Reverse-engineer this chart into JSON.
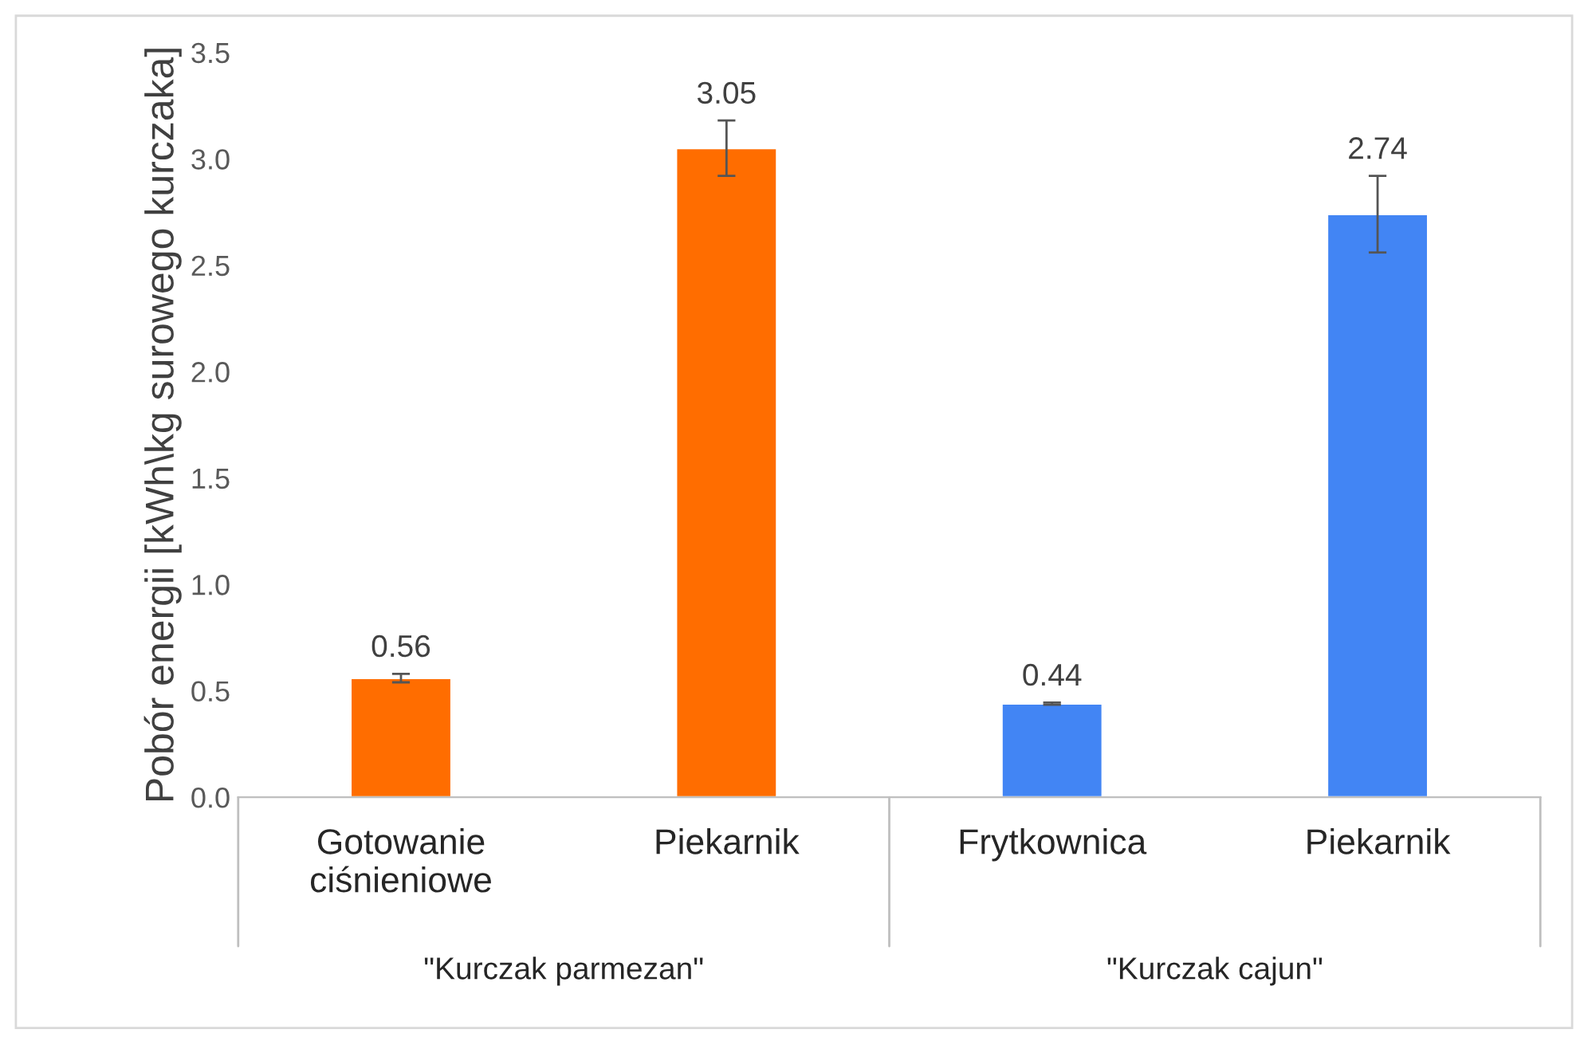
{
  "chart_data": {
    "type": "bar",
    "categories": [
      "Gotowanie\nciśnieniowe",
      "Piekarnik",
      "Frytkownica",
      "Piekarnik"
    ],
    "values": [
      0.56,
      3.05,
      0.44,
      2.74
    ],
    "colors": [
      "#ff6d00",
      "#ff6d00",
      "#4285f4",
      "#4285f4"
    ],
    "errors": [
      0.02,
      0.13,
      0.005,
      0.18
    ],
    "data_labels": true,
    "ylabel": "Pobór energii [kWh\\kg surowego kurczaka]",
    "ylim": [
      0,
      3.5
    ],
    "yticks": [
      {
        "value": 0,
        "label": "0.0"
      },
      {
        "value": 0.5,
        "label": "0.5"
      },
      {
        "value": 1,
        "label": "1.0"
      },
      {
        "value": 1.5,
        "label": "1.5"
      },
      {
        "value": 2,
        "label": "2.0"
      },
      {
        "value": 2.5,
        "label": "2.5"
      },
      {
        "value": 3,
        "label": "3.0"
      },
      {
        "value": 3.5,
        "label": "3.5"
      }
    ],
    "annotations": [
      "\"Kurczak parmezan\"",
      "\"Kurczak cajun\""
    ],
    "grid": false
  }
}
